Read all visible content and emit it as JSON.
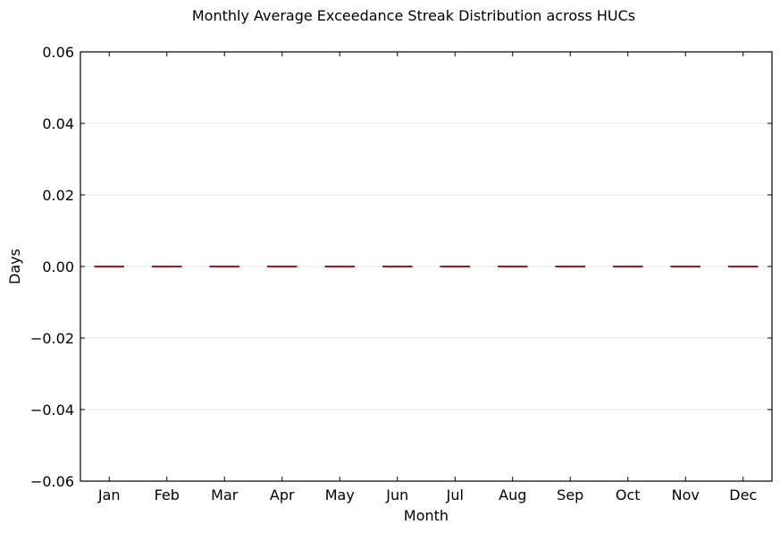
{
  "chart_data": {
    "type": "box",
    "title": "Monthly Average Exceedance Streak Distribution across HUCs",
    "xlabel": "Month",
    "ylabel": "Days",
    "categories": [
      "Jan",
      "Feb",
      "Mar",
      "Apr",
      "May",
      "Jun",
      "Jul",
      "Aug",
      "Sep",
      "Oct",
      "Nov",
      "Dec"
    ],
    "ylim": [
      -0.06,
      0.06
    ],
    "yticks": [
      0.06,
      0.04,
      0.02,
      0.0,
      -0.02,
      -0.04,
      -0.06
    ],
    "ytick_labels": [
      "0.06",
      "0.04",
      "0.02",
      "0.00",
      "−0.02",
      "−0.04",
      "−0.06"
    ],
    "series": [
      {
        "values": [
          {
            "min": 0,
            "q1": 0,
            "median": 0,
            "q3": 0,
            "max": 0
          },
          {
            "min": 0,
            "q1": 0,
            "median": 0,
            "q3": 0,
            "max": 0
          },
          {
            "min": 0,
            "q1": 0,
            "median": 0,
            "q3": 0,
            "max": 0
          },
          {
            "min": 0,
            "q1": 0,
            "median": 0,
            "q3": 0,
            "max": 0
          },
          {
            "min": 0,
            "q1": 0,
            "median": 0,
            "q3": 0,
            "max": 0
          },
          {
            "min": 0,
            "q1": 0,
            "median": 0,
            "q3": 0,
            "max": 0
          },
          {
            "min": 0,
            "q1": 0,
            "median": 0,
            "q3": 0,
            "max": 0
          },
          {
            "min": 0,
            "q1": 0,
            "median": 0,
            "q3": 0,
            "max": 0
          },
          {
            "min": 0,
            "q1": 0,
            "median": 0,
            "q3": 0,
            "max": 0
          },
          {
            "min": 0,
            "q1": 0,
            "median": 0,
            "q3": 0,
            "max": 0
          },
          {
            "min": 0,
            "q1": 0,
            "median": 0,
            "q3": 0,
            "max": 0
          },
          {
            "min": 0,
            "q1": 0,
            "median": 0,
            "q3": 0,
            "max": 0
          }
        ]
      }
    ],
    "grid": true,
    "colors": {
      "median": "#d62728",
      "box": "#000000",
      "grid": "#e8e8e8"
    }
  }
}
